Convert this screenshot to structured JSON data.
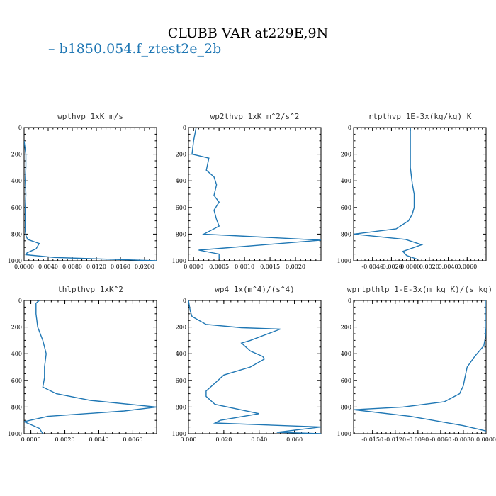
{
  "title": "CLUBB VAR at229E,9N",
  "legend": {
    "label": "b1850.054.f_ztest2e_2b",
    "color": "#1f77b4"
  },
  "chart_data": [
    {
      "type": "line",
      "title": "wpthvp   1xK m/s",
      "xlim": [
        0,
        0.022
      ],
      "ylim": [
        1000,
        0
      ],
      "xticks": [
        0,
        0.004,
        0.008,
        0.012,
        0.016,
        0.02
      ],
      "xtick_labels": [
        "0.0000",
        "0.0040",
        "0.0080",
        "0.0120",
        "0.0160",
        "0.0200"
      ],
      "yticks": [
        0,
        200,
        400,
        600,
        800,
        1000
      ],
      "ytick_labels": [
        "0",
        "200",
        "400",
        "600",
        "800",
        "1000"
      ],
      "series": [
        {
          "x": [
            0,
            0.0003,
            0.0003,
            0.0002,
            0.0003,
            0.0002,
            0.0002,
            0.0002,
            0.0003,
            0.0006,
            0.0025,
            0.002,
            0.0005,
            0.0003,
            0.005,
            0.015,
            0.022
          ],
          "y": [
            100,
            200,
            300,
            400,
            500,
            600,
            700,
            780,
            810,
            840,
            870,
            910,
            940,
            955,
            975,
            990,
            1000
          ]
        }
      ]
    },
    {
      "type": "line",
      "title": "wp2thvp   1xK m^2/s^2",
      "xlim": [
        -0.0001,
        0.0025
      ],
      "ylim": [
        1000,
        0
      ],
      "xticks": [
        0,
        0.0005,
        0.001,
        0.0015,
        0.002
      ],
      "xtick_labels": [
        "0.0000",
        "0.0005",
        "0.0010",
        "0.0015",
        "0.0020"
      ],
      "yticks": [
        0,
        200,
        400,
        600,
        800,
        1000
      ],
      "ytick_labels": [
        "0",
        "200",
        "400",
        "600",
        "800",
        "1000"
      ],
      "series": [
        {
          "x": [
            5e-05,
            0,
            -3e-05,
            0.0002,
            0.0003,
            0.00025,
            0.0004,
            0.00045,
            0.0004,
            0.0005,
            0.0004,
            0.00045,
            0.0005,
            0.0002,
            0.0025,
            0.0001,
            0.0005,
            0.0005
          ],
          "y": [
            0,
            100,
            200,
            220,
            230,
            320,
            370,
            430,
            510,
            560,
            620,
            690,
            740,
            800,
            845,
            920,
            950,
            990
          ]
        }
      ]
    },
    {
      "type": "line",
      "title": "rtpthvp   1E-3x(kg/kg) K",
      "xlim": [
        -0.006,
        0.008
      ],
      "ylim": [
        1000,
        0
      ],
      "xticks": [
        -0.004,
        -0.002,
        0,
        0.002,
        0.004,
        0.006
      ],
      "xtick_labels": [
        "-0.0040",
        "-0.0020",
        "0.0000",
        "0.0020",
        "0.0040",
        "0.0060"
      ],
      "yticks": [
        0,
        200,
        400,
        600,
        800,
        1000
      ],
      "ytick_labels": [
        "0",
        "200",
        "400",
        "600",
        "800",
        "1000"
      ],
      "series": [
        {
          "x": [
            0,
            0,
            0.0002,
            0.0004,
            0.0004,
            0.0002,
            -0.0002,
            -0.0015,
            -0.006,
            -0.0005,
            0.0012,
            -0.0008,
            -0.0004,
            0.0008
          ],
          "y": [
            0,
            300,
            420,
            500,
            600,
            650,
            700,
            760,
            800,
            840,
            880,
            930,
            960,
            990
          ]
        }
      ]
    },
    {
      "type": "line",
      "title": "thlpthvp   1xK^2",
      "xlim": [
        -0.0004,
        0.0074
      ],
      "ylim": [
        1000,
        0
      ],
      "xticks": [
        0,
        0.002,
        0.004,
        0.006
      ],
      "xtick_labels": [
        "0.0000",
        "0.0020",
        "0.0040",
        "0.0060"
      ],
      "yticks": [
        0,
        200,
        400,
        600,
        800,
        1000
      ],
      "ytick_labels": [
        "0",
        "200",
        "400",
        "600",
        "800",
        "1000"
      ],
      "series": [
        {
          "x": [
            0.0005,
            0.0003,
            0.0003,
            0.0004,
            0.0007,
            0.0009,
            0.0008,
            0.0008,
            0.0007,
            0.0015,
            0.0035,
            0.0074,
            0.0055,
            0.001,
            -0.0004,
            0.0005,
            0.0007
          ],
          "y": [
            0,
            20,
            100,
            200,
            300,
            400,
            500,
            580,
            650,
            700,
            750,
            800,
            830,
            870,
            910,
            960,
            1000
          ]
        }
      ]
    },
    {
      "type": "line",
      "title": "wp4   1x(m^4)/(s^4)",
      "xlim": [
        0,
        0.075
      ],
      "ylim": [
        1000,
        0
      ],
      "xticks": [
        0,
        0.02,
        0.04,
        0.06
      ],
      "xtick_labels": [
        "0.000",
        "0.020",
        "0.040",
        "0.060"
      ],
      "yticks": [
        0,
        200,
        400,
        600,
        800,
        1000
      ],
      "ytick_labels": [
        "0",
        "200",
        "400",
        "600",
        "800",
        "1000"
      ],
      "series": [
        {
          "x": [
            0,
            0.001,
            0.002,
            0.01,
            0.03,
            0.052,
            0.043,
            0.035,
            0.03,
            0.035,
            0.042,
            0.043,
            0.035,
            0.02,
            0.015,
            0.01,
            0.01,
            0.015,
            0.04,
            0.018,
            0.015,
            0.075,
            0.05,
            0.075
          ],
          "y": [
            0,
            80,
            120,
            180,
            205,
            215,
            260,
            300,
            320,
            380,
            420,
            440,
            500,
            560,
            620,
            680,
            720,
            780,
            850,
            900,
            920,
            950,
            990,
            1000
          ]
        }
      ]
    },
    {
      "type": "line",
      "title": "wprtpthlp   1-E-3x(m kg K)/(s kg)",
      "xlim": [
        -0.0175,
        0
      ],
      "ylim": [
        1000,
        0
      ],
      "xticks": [
        -0.015,
        -0.012,
        -0.009,
        -0.006,
        -0.003,
        0
      ],
      "xtick_labels": [
        "-0.0150",
        "-0.0120",
        "-0.0090",
        "-0.0060",
        "-0.0030",
        "0.0000"
      ],
      "yticks": [
        0,
        200,
        400,
        600,
        800,
        1000
      ],
      "ytick_labels": [
        "0",
        "200",
        "400",
        "600",
        "800",
        "1000"
      ],
      "series": [
        {
          "x": [
            0,
            0,
            -0.0001,
            -0.0003,
            -0.0015,
            -0.0025,
            -0.0028,
            -0.003,
            -0.0035,
            -0.0055,
            -0.011,
            -0.0175,
            -0.01,
            -0.003,
            0
          ],
          "y": [
            0,
            200,
            280,
            340,
            420,
            500,
            580,
            640,
            700,
            760,
            800,
            820,
            870,
            940,
            980
          ]
        }
      ]
    }
  ]
}
